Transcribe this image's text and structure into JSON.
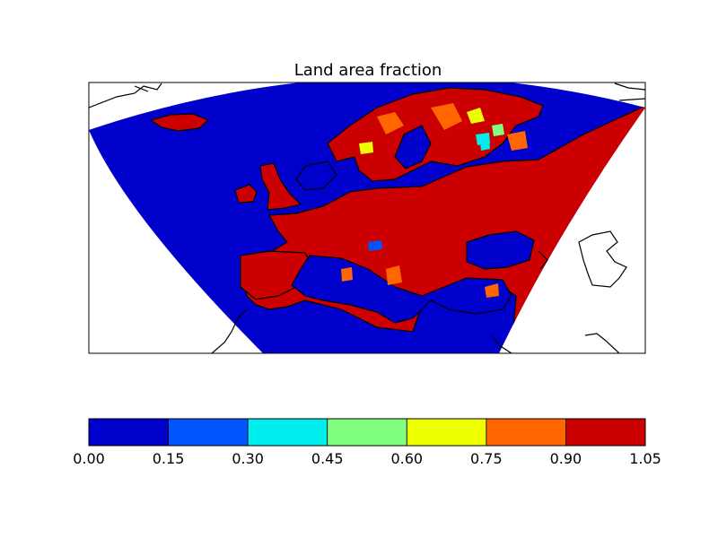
{
  "title": "Land area fraction",
  "colorbar": {
    "ticks": [
      "0.00",
      "0.15",
      "0.30",
      "0.45",
      "0.60",
      "0.75",
      "0.90",
      "1.05"
    ],
    "levels": [
      0.0,
      0.15,
      0.3,
      0.45,
      0.6,
      0.75,
      0.9,
      1.05
    ],
    "colors": [
      "#0000cc",
      "#0055ff",
      "#00eeee",
      "#80ff80",
      "#eeff00",
      "#ff6600",
      "#cc0000"
    ]
  },
  "map": {
    "domain_color_water": "#0000cc",
    "domain_color_land": "#cc0000",
    "coastline_color": "#000000"
  }
}
